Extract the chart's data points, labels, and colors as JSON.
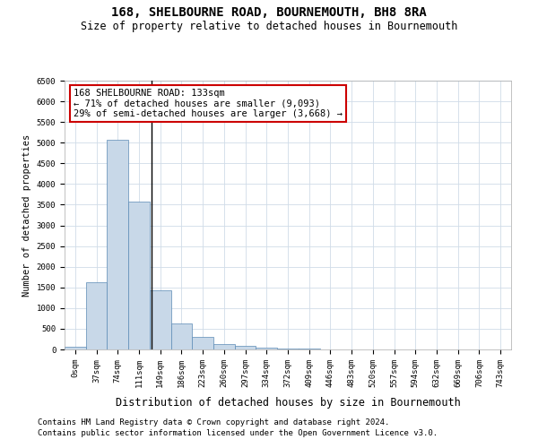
{
  "title": "168, SHELBOURNE ROAD, BOURNEMOUTH, BH8 8RA",
  "subtitle": "Size of property relative to detached houses in Bournemouth",
  "xlabel": "Distribution of detached houses by size in Bournemouth",
  "ylabel": "Number of detached properties",
  "categories": [
    "0sqm",
    "37sqm",
    "74sqm",
    "111sqm",
    "149sqm",
    "186sqm",
    "223sqm",
    "260sqm",
    "297sqm",
    "334sqm",
    "372sqm",
    "409sqm",
    "446sqm",
    "483sqm",
    "520sqm",
    "557sqm",
    "594sqm",
    "632sqm",
    "669sqm",
    "706sqm",
    "743sqm"
  ],
  "values": [
    70,
    1620,
    5060,
    3580,
    1420,
    620,
    300,
    130,
    80,
    45,
    30,
    15,
    10,
    5,
    3,
    2,
    1,
    1,
    0,
    0,
    0
  ],
  "bar_color": "#c8d8e8",
  "bar_edge_color": "#5b8ab5",
  "marker_label": "168 SHELBOURNE ROAD: 133sqm",
  "annotation_line1": "← 71% of detached houses are smaller (9,093)",
  "annotation_line2": "29% of semi-detached houses are larger (3,668) →",
  "annotation_box_color": "#ffffff",
  "annotation_box_edge": "#cc0000",
  "ylim": [
    0,
    6500
  ],
  "yticks": [
    0,
    500,
    1000,
    1500,
    2000,
    2500,
    3000,
    3500,
    4000,
    4500,
    5000,
    5500,
    6000,
    6500
  ],
  "footer1": "Contains HM Land Registry data © Crown copyright and database right 2024.",
  "footer2": "Contains public sector information licensed under the Open Government Licence v3.0.",
  "bg_color": "#ffffff",
  "grid_color": "#d0dce8",
  "title_fontsize": 10,
  "subtitle_fontsize": 8.5,
  "tick_fontsize": 6.5,
  "ylabel_fontsize": 7.5,
  "xlabel_fontsize": 8.5,
  "footer_fontsize": 6.5,
  "annot_fontsize": 7.5
}
